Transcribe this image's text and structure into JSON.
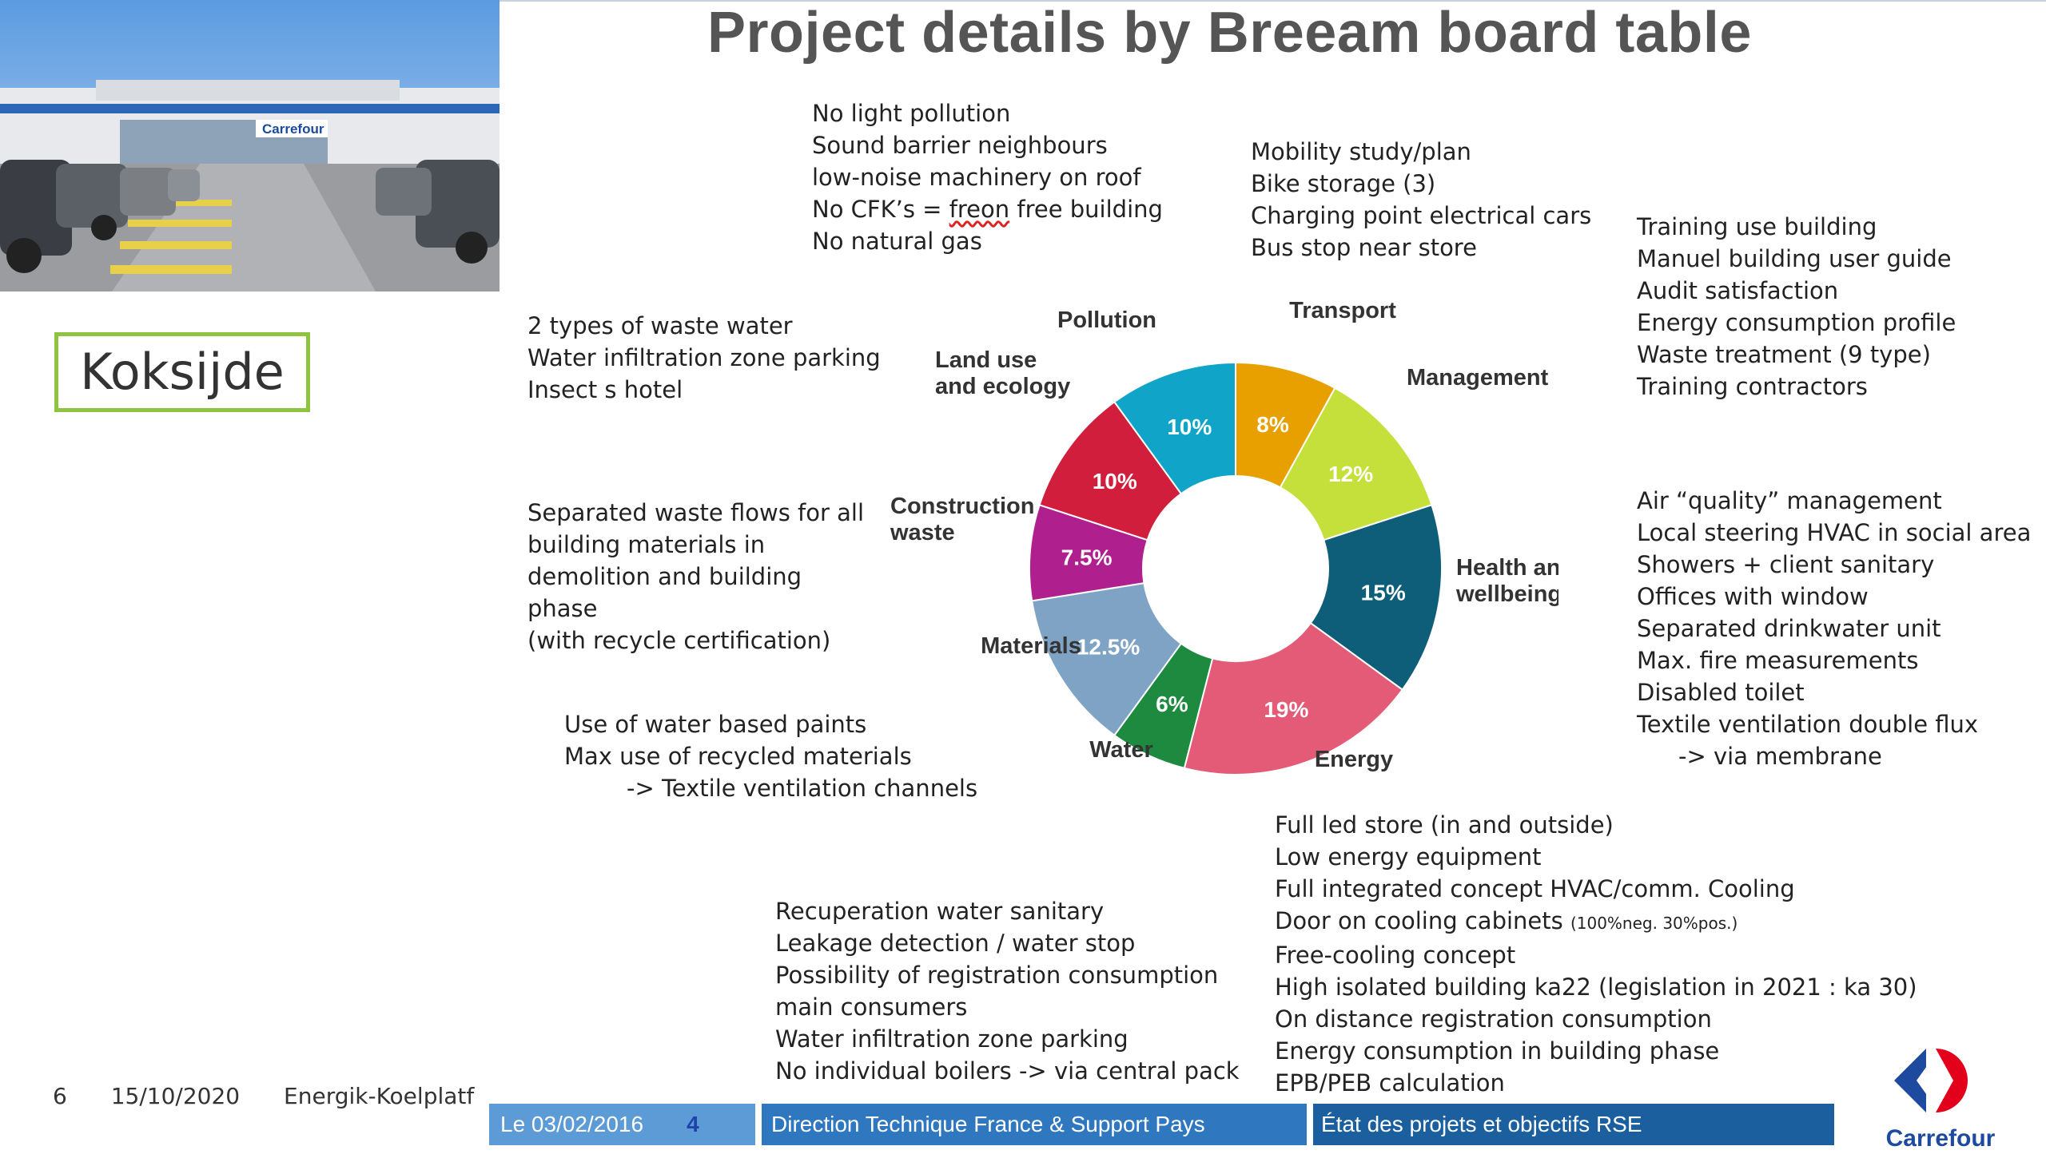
{
  "slide": {
    "title": "Project details by Breeam board table",
    "location_label": "Koksijde",
    "photo_sign": "Carrefour"
  },
  "annotations": {
    "pollution": [
      "No light pollution",
      "Sound barrier neighbours",
      "low-noise machinery on roof",
      "No CFK’s = freon free building",
      "No natural gas"
    ],
    "transport": [
      "Mobility study/plan",
      "Bike storage (3)",
      "Charging point electrical cars",
      "Bus stop near store"
    ],
    "management": [
      "Training use building",
      "Manuel building user guide",
      "Audit satisfaction",
      "Energy consumption profile",
      "Waste treatment (9 type)",
      "Training contractors"
    ],
    "land_use": [
      "2 types of waste water",
      "Water infiltration zone parking",
      "Insect s hotel"
    ],
    "construction_waste": [
      "Separated waste flows for all",
      "building materials in",
      "demolition and building",
      "phase",
      "(with recycle certification)"
    ],
    "health": [
      "Air “quality” management",
      "Local steering HVAC in social area",
      "Showers + client sanitary",
      "Offices with window",
      "Separated drinkwater unit",
      "Max. fire measurements",
      "Disabled toilet",
      "Textile ventilation double flux",
      "-> via membrane"
    ],
    "materials": [
      "Use of water based paints",
      "Max use of recycled materials",
      "-> Textile ventilation channels"
    ],
    "water": [
      "Recuperation water sanitary",
      "Leakage detection / water stop",
      "Possibility of registration consumption",
      "main consumers",
      "Water infiltration zone parking",
      "No individual boilers -> via central pack"
    ],
    "energy": {
      "line1": "Full led store (in and outside)",
      "line2": "Low energy equipment",
      "line3": "Full integrated concept HVAC/comm. Cooling",
      "line4": "Door  on cooling cabinets",
      "line4_small": "(100%neg. 30%pos.)",
      "line5": "Free-cooling concept",
      "line6": "High isolated building ka22 (legislation in 2021 : ka 30)",
      "line7": "On distance registration consumption",
      "line8": "Energy consumption in building phase",
      "line9": "EPB/PEB calculation"
    }
  },
  "footer": {
    "page": "6",
    "date": "15/10/2020",
    "source": "Energik-Koelplatf",
    "bar_date": "Le  03/02/2016",
    "bar_num": "4",
    "bar_dept": "Direction Technique  France  & Support Pays",
    "bar_state": "État des projets et objectifs RSE",
    "logo_text": "Carrefour"
  },
  "chart_data": {
    "type": "pie",
    "donut": true,
    "slices": [
      {
        "label": "Transport",
        "value": 8,
        "display": "8%",
        "color": "#e8a000"
      },
      {
        "label": "Management",
        "value": 12,
        "display": "12%",
        "color": "#c5e03b"
      },
      {
        "label": "Health and wellbeing",
        "value": 15,
        "display": "15%",
        "color": "#0e5e7a"
      },
      {
        "label": "Energy",
        "value": 19,
        "display": "19%",
        "color": "#e45b77"
      },
      {
        "label": "Water",
        "value": 6,
        "display": "6%",
        "color": "#1d8a3f"
      },
      {
        "label": "Materials",
        "value": 12.5,
        "display": "12.5%",
        "color": "#7ea3c4"
      },
      {
        "label": "Construction waste",
        "value": 7.5,
        "display": "7.5%",
        "color": "#b01f8e"
      },
      {
        "label": "Land use and ecology",
        "value": 10,
        "display": "10%",
        "color": "#d21e3d"
      },
      {
        "label": "Pollution",
        "value": 10,
        "display": "10%",
        "color": "#10a4c8"
      }
    ]
  }
}
